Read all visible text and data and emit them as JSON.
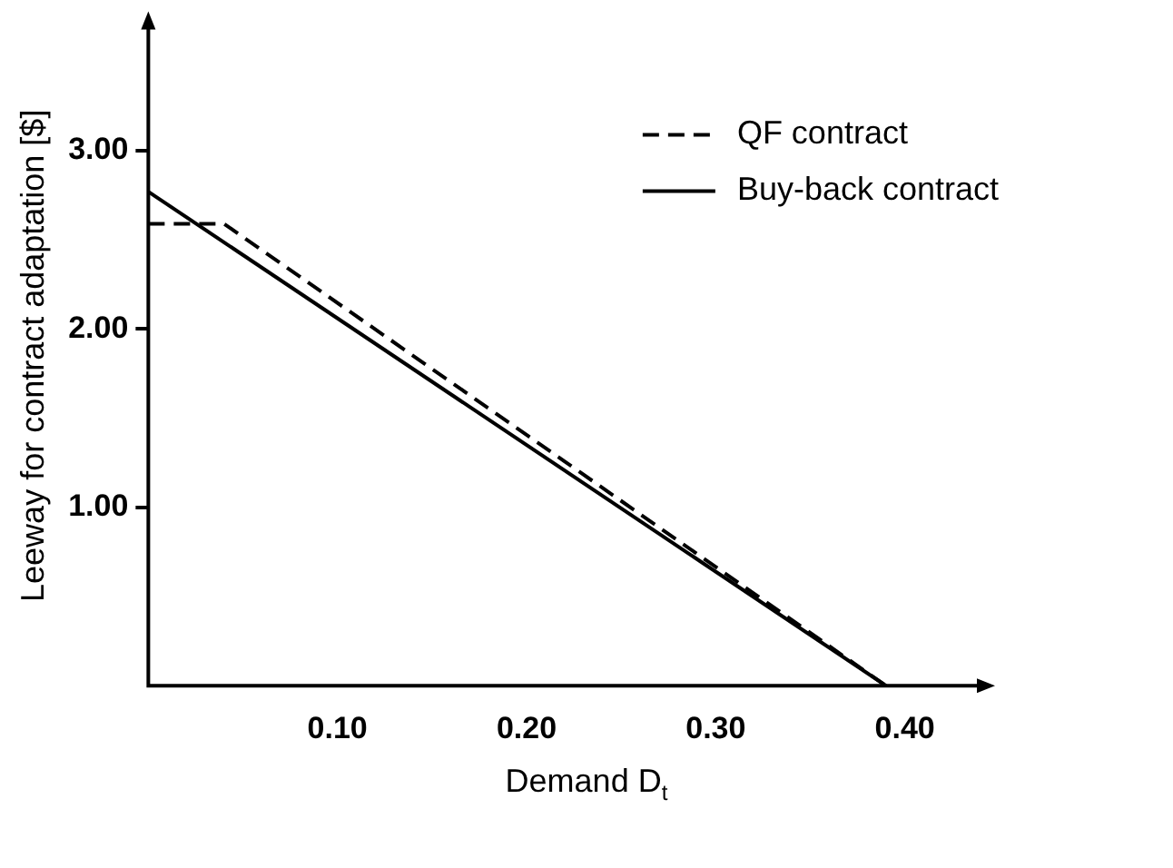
{
  "chart_data": {
    "type": "line",
    "xlabel": "Demand D$_{t}$",
    "ylabel": "Leeway for contract adaptation [$]",
    "xlim": [
      0,
      0.44
    ],
    "ylim": [
      0,
      3.7
    ],
    "xticks": [
      {
        "value": 0.1,
        "label": "0.10"
      },
      {
        "value": 0.2,
        "label": "0.20"
      },
      {
        "value": 0.3,
        "label": "0.30"
      },
      {
        "value": 0.4,
        "label": "0.40"
      }
    ],
    "yticks": [
      {
        "value": 1,
        "label": "1.00"
      },
      {
        "value": 2,
        "label": "2.00"
      },
      {
        "value": 3,
        "label": "3.00"
      }
    ],
    "grid": false,
    "legend": "top right",
    "marker": "none",
    "series": [
      {
        "name": "QF contract",
        "color": "#000000",
        "line_style": "dashed",
        "x": [
          0,
          0.04,
          0.39
        ],
        "values": [
          2.59,
          2.59,
          0
        ]
      },
      {
        "name": "Buy-back contract",
        "color": "#000000",
        "line_style": "solid",
        "x": [
          0,
          0.39
        ],
        "values": [
          2.77,
          0
        ]
      }
    ]
  }
}
